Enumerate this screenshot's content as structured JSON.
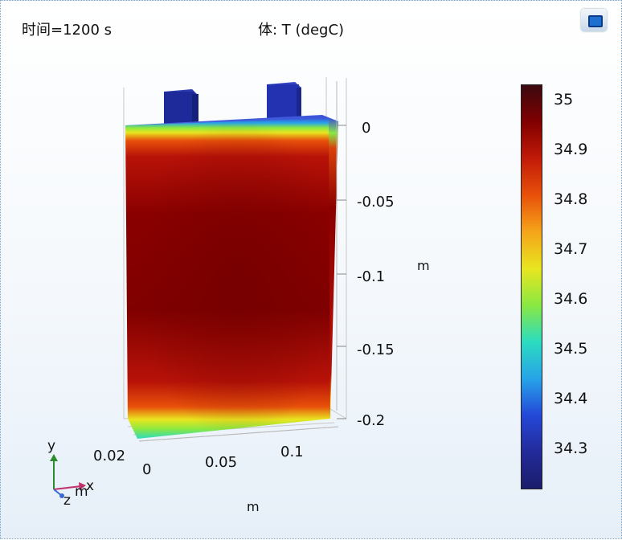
{
  "header": {
    "time_label": "时间=1200 s",
    "plot_title": "体: T (degC)"
  },
  "chart_data": {
    "type": "heatmap",
    "title": "体: T (degC)",
    "time": "时间=1200 s",
    "variable": "T",
    "unit": "degC",
    "colorbar": {
      "min": 34.2,
      "max": 35.03,
      "tick_labels": [
        "35",
        "34.9",
        "34.8",
        "34.7",
        "34.6",
        "34.5",
        "34.4",
        "34.3"
      ],
      "colormap": [
        "#3b0a10",
        "#800000",
        "#c21a08",
        "#e8510a",
        "#f5a51a",
        "#e8e620",
        "#8ae842",
        "#2cdcc0",
        "#27a4e8",
        "#2448d8",
        "#232a9a",
        "#1a1d6a"
      ]
    },
    "axes": {
      "z_ticks": [
        "0",
        "-0.05",
        "-0.1",
        "-0.15",
        "-0.2"
      ],
      "z_unit": "m",
      "x_ticks": [
        "0",
        "0.05",
        "0.1"
      ],
      "x_unit": "m",
      "y_ticks": [
        "0.02"
      ]
    },
    "triad": {
      "y": "y",
      "x": "x",
      "z": "z",
      "m": "m"
    },
    "fields": {
      "core_max": "#7a0000",
      "edge_min": "#3a54d8",
      "tab_color": "#1e2a9a"
    }
  }
}
